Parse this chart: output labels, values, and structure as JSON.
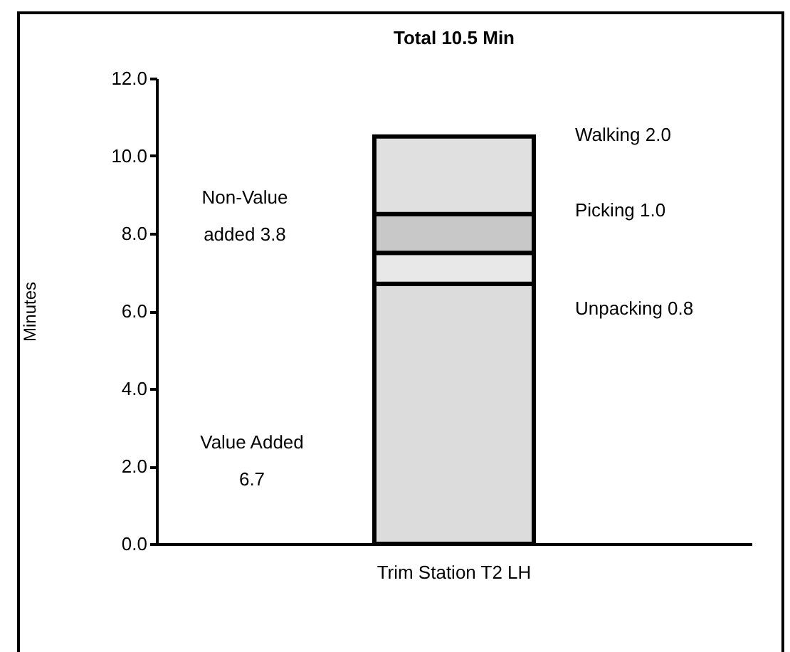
{
  "chart_data": {
    "type": "bar",
    "title": "Total 10.5 Min",
    "ylabel": "Minutes",
    "categories": [
      "Trim Station T2 LH"
    ],
    "stacked": true,
    "series": [
      {
        "color": "#dcdcdc",
        "values": [
          6.7
        ]
      },
      {
        "color": "#e8e8e8",
        "values": [
          0.8
        ]
      },
      {
        "color": "#c8c8c8",
        "values": [
          1.0
        ]
      },
      {
        "color": "#e0e0e0",
        "values": [
          2.0
        ]
      }
    ],
    "ylim": [
      0,
      12
    ],
    "yticks": [
      {
        "value": 0,
        "label": "0.0"
      },
      {
        "value": 2,
        "label": "2.0"
      },
      {
        "value": 4,
        "label": "4.0"
      },
      {
        "value": 6,
        "label": "6.0"
      },
      {
        "value": 8,
        "label": "8.0"
      },
      {
        "value": 10,
        "label": "10.0"
      },
      {
        "value": 12,
        "label": "12.0"
      }
    ],
    "grid": false,
    "legend": false,
    "annotations": [
      "Non-Value\nadded 3.8",
      "Value Added\n6.7",
      "Walking 2.0",
      "Picking 1.0",
      "Unpacking 0.8"
    ]
  }
}
